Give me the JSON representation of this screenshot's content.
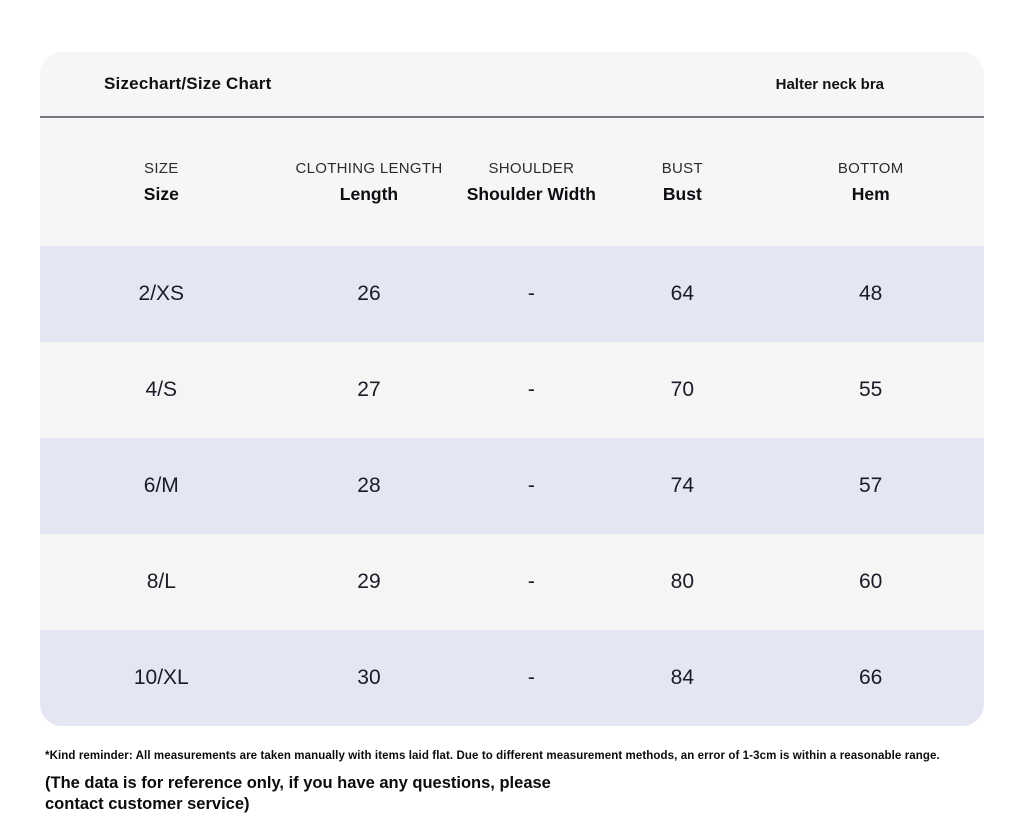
{
  "header": {
    "product_label": "Halter neck bra"
  },
  "chart_data": {
    "type": "table",
    "title": "Sizechart/Size Chart",
    "columns": [
      {
        "group": "SIZE",
        "label": "Size"
      },
      {
        "group": "CLOTHING LENGTH",
        "label": "Length"
      },
      {
        "group": "SHOULDER",
        "label": "Shoulder Width"
      },
      {
        "group": "BUST",
        "label": "Bust"
      },
      {
        "group": "BOTTOM",
        "label": "Hem"
      }
    ],
    "rows": [
      [
        "2/XS",
        "26",
        "-",
        "64",
        "48"
      ],
      [
        "4/S",
        "27",
        "-",
        "70",
        "55"
      ],
      [
        "6/M",
        "28",
        "-",
        "74",
        "57"
      ],
      [
        "8/L",
        "29",
        "-",
        "80",
        "60"
      ],
      [
        "10/XL",
        "30",
        "-",
        "84",
        "66"
      ]
    ]
  },
  "footer": {
    "reminder": "*Kind reminder: All measurements are taken manually with items laid flat. Due to different measurement methods, an error of 1-3cm is within a reasonable range.",
    "reference_note": "(The data is for reference only, if you have any questions, please contact customer service)"
  },
  "colors": {
    "row_stripe": "#e4e6f3",
    "row_plain": "#f5f5f6",
    "card_bg": "#f6f6f7",
    "divider": "#737a83"
  }
}
